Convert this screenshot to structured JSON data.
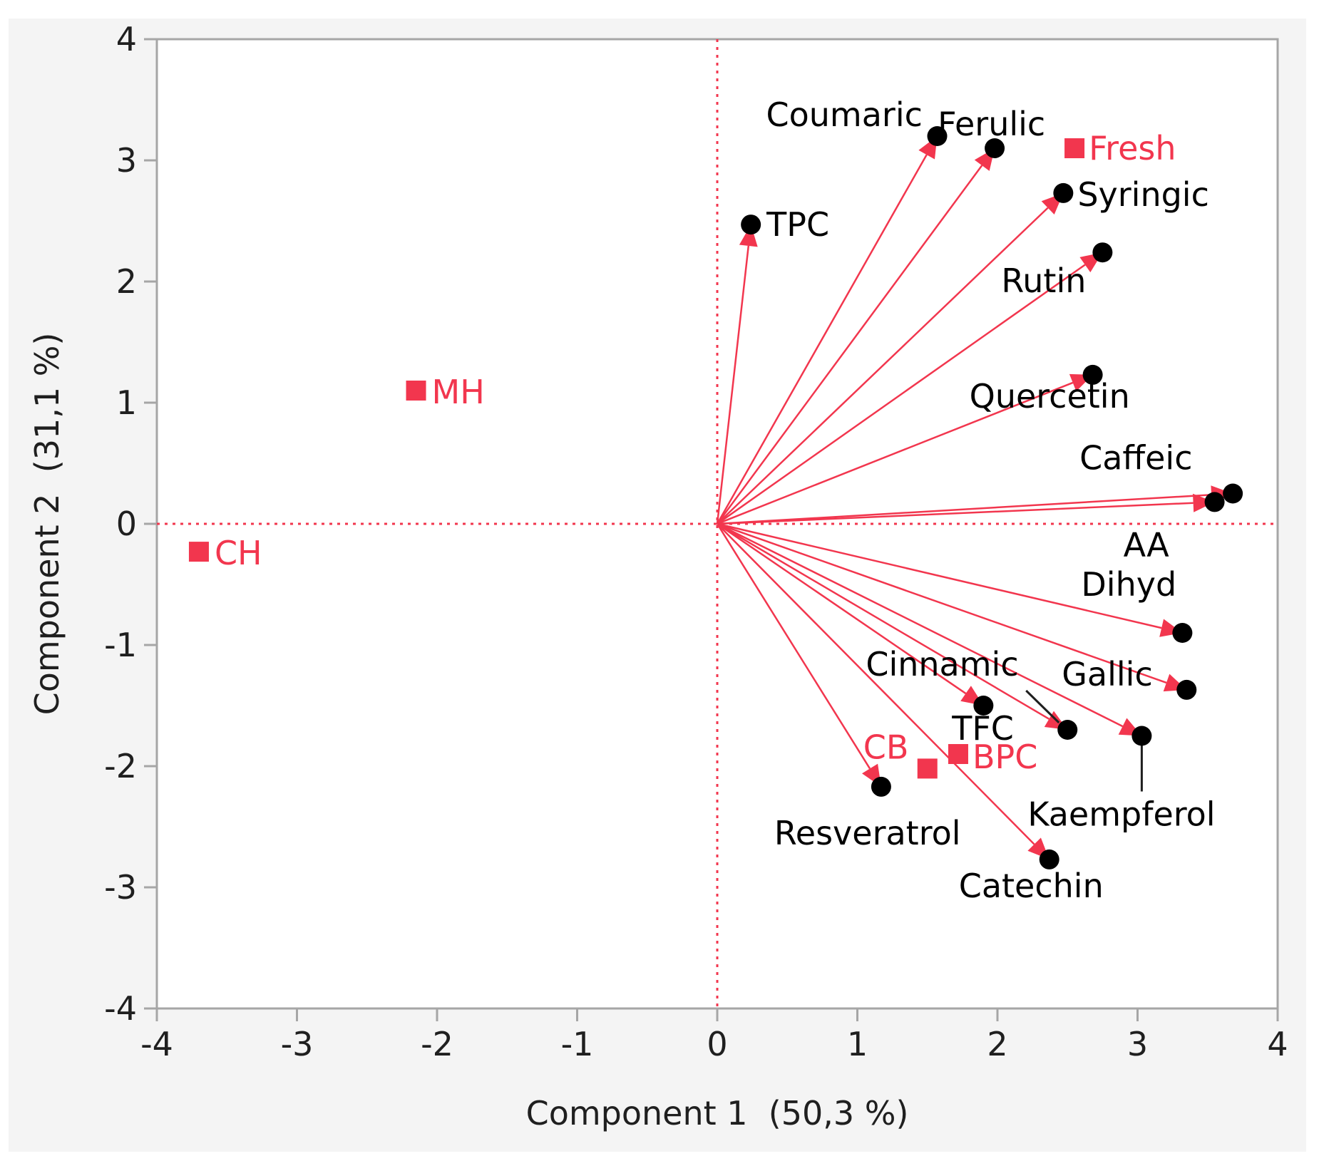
{
  "chart_data": {
    "type": "scatter",
    "subtype": "pca-biplot",
    "title": "",
    "xlabel": "Component 1  (50,3 %)",
    "ylabel": "Component 2  (31,1 %)",
    "xlim": [
      -4,
      4
    ],
    "ylim": [
      -4,
      4
    ],
    "xticks": [
      "-4",
      "-3",
      "-2",
      "-1",
      "0",
      "1",
      "2",
      "3",
      "4"
    ],
    "yticks": [
      "4",
      "3",
      "2",
      "1",
      "0",
      "-1",
      "-2",
      "-3",
      "-4"
    ],
    "grid": false,
    "reference_lines": {
      "x": 0,
      "y": 0,
      "style": "dotted"
    },
    "loadings": [
      {
        "name": "Coumaric",
        "x": 1.57,
        "y": 3.2
      },
      {
        "name": "Ferulic",
        "x": 1.98,
        "y": 3.1
      },
      {
        "name": "Syringic",
        "x": 2.47,
        "y": 2.73
      },
      {
        "name": "TPC",
        "x": 0.24,
        "y": 2.47
      },
      {
        "name": "Rutin",
        "x": 2.75,
        "y": 2.24
      },
      {
        "name": "Quercetin",
        "x": 2.68,
        "y": 1.23
      },
      {
        "name": "Caffeic",
        "x": 3.68,
        "y": 0.25
      },
      {
        "name": "AA",
        "x": 3.55,
        "y": 0.18
      },
      {
        "name": "Dihyd",
        "x": 3.32,
        "y": -0.9
      },
      {
        "name": "Gallic",
        "x": 3.35,
        "y": -1.37
      },
      {
        "name": "Cinnamic",
        "x": 1.9,
        "y": -1.5
      },
      {
        "name": "TFC",
        "x": 2.5,
        "y": -1.7
      },
      {
        "name": "Kaempferol",
        "x": 3.03,
        "y": -1.75
      },
      {
        "name": "Resveratrol",
        "x": 1.17,
        "y": -2.17
      },
      {
        "name": "Catechin",
        "x": 2.37,
        "y": -2.77
      }
    ],
    "scores": [
      {
        "name": "Fresh",
        "x": 2.55,
        "y": 3.1
      },
      {
        "name": "MH",
        "x": -2.15,
        "y": 1.1
      },
      {
        "name": "CH",
        "x": -3.7,
        "y": -0.23
      },
      {
        "name": "CB",
        "x": 1.5,
        "y": -2.02
      },
      {
        "name": "BPC",
        "x": 1.72,
        "y": -1.9
      }
    ],
    "colors": {
      "vector": "#f2364e",
      "loading_point": "#000000",
      "score": "#f2364e",
      "loading_label": "#000000",
      "score_label": "#f2364e"
    }
  }
}
